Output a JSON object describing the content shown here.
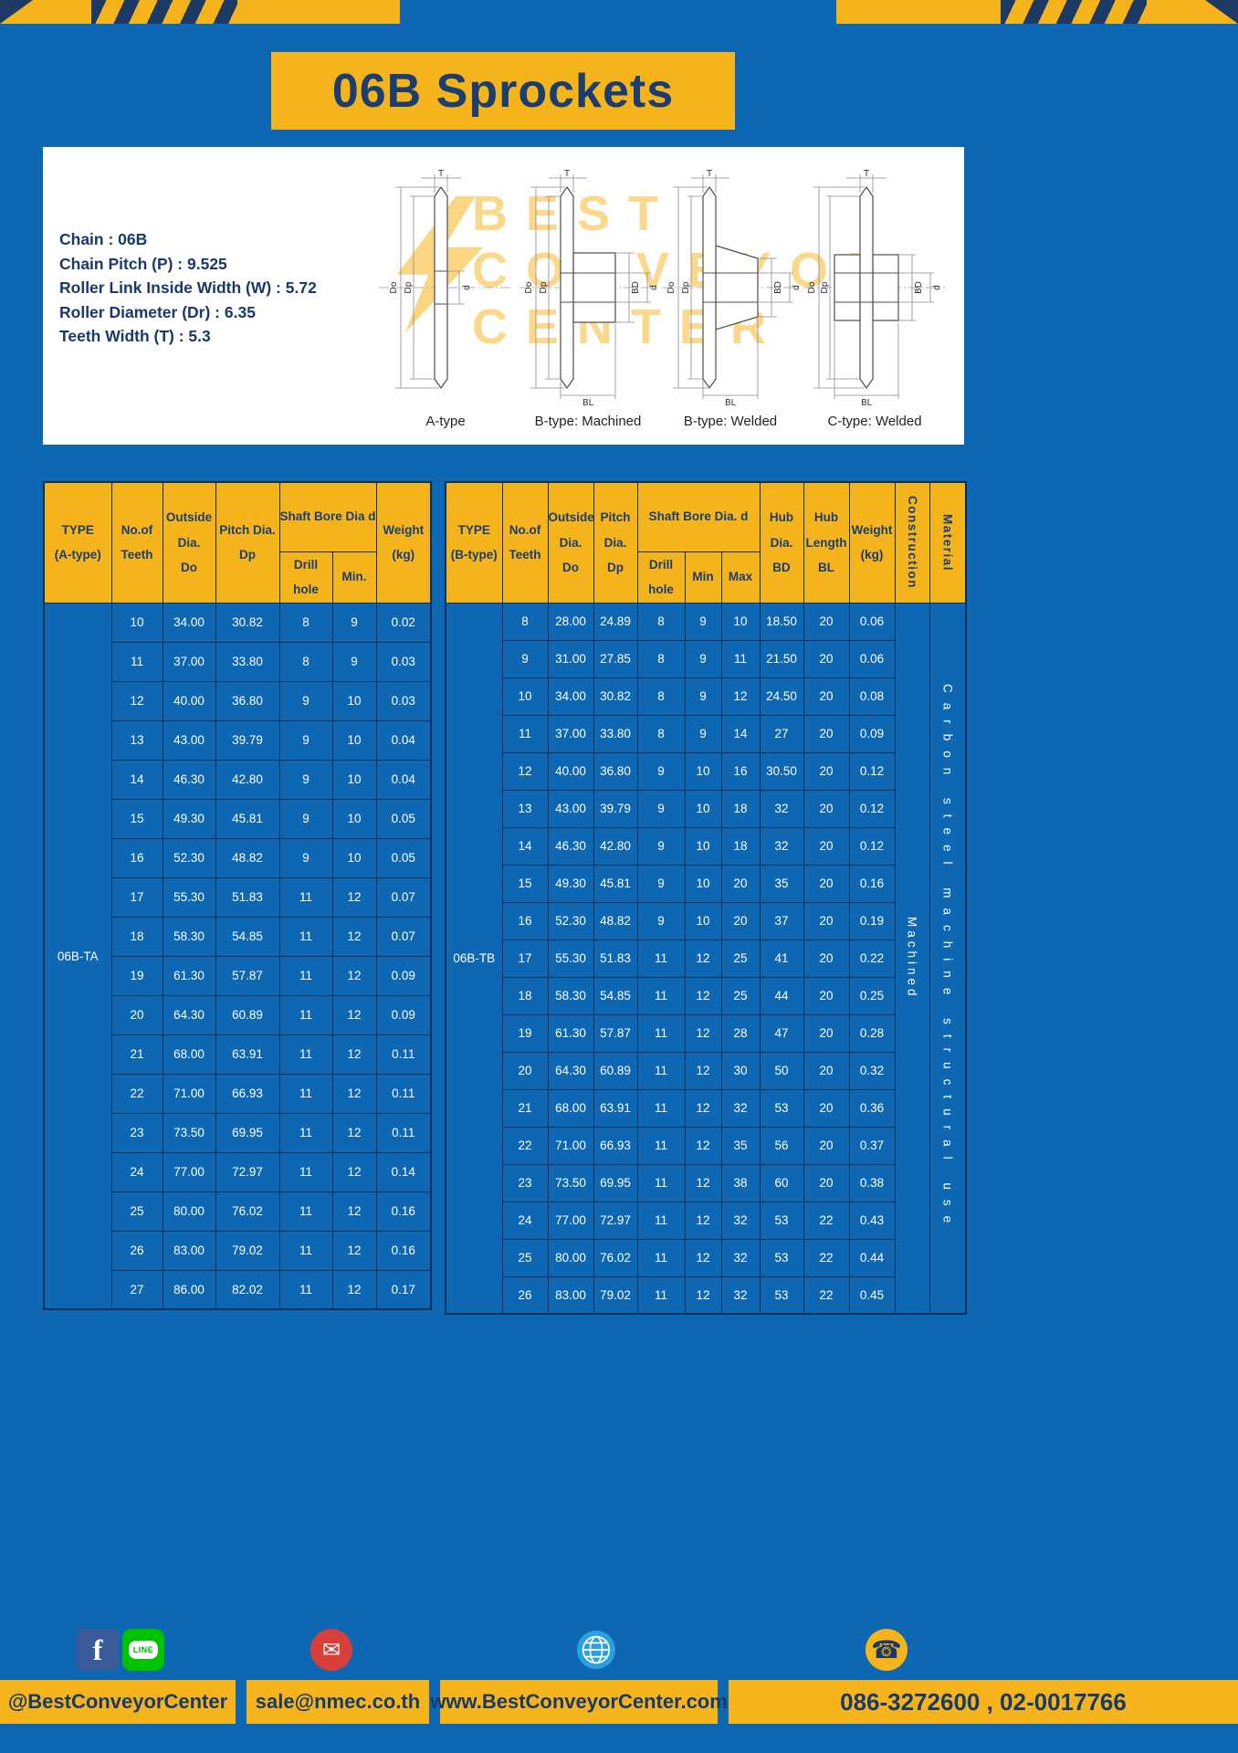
{
  "page_title": "06B Sprockets",
  "specs": [
    "Chain : 06B",
    "Chain Pitch (P) : 9.525",
    "Roller Link Inside Width (W) : 5.72",
    "Roller Diameter (Dr) : 6.35",
    "Teeth Width (T) : 5.3"
  ],
  "watermark": {
    "line1": "BEST",
    "line2": "CONVEYOR",
    "line3": "CENTER"
  },
  "drawings": {
    "captions": [
      "A-type",
      "B-type: Machined",
      "B-type: Welded",
      "C-type: Welded"
    ],
    "dim_labels": {
      "t": "T",
      "do": "Do",
      "dp": "Dp",
      "d": "d",
      "bd": "BD",
      "bl": "BL"
    }
  },
  "colors": {
    "page_blue": "#0e67b2",
    "accent_yellow": "#f5b41c",
    "navy_text": "#1a3e6f"
  },
  "table_a": {
    "type_label": "06B-TA",
    "headers": {
      "type": "TYPE\n(A-type)",
      "teeth": "No.of\nTeeth",
      "outside": "Outside\nDia.\nDo",
      "pitch": "Pitch Dia.\nDp",
      "bore": "Shaft Bore Dia d",
      "drill": "Drill hole",
      "min": "Min.",
      "weight": "Weight\n(kg)"
    },
    "rows": [
      [
        "10",
        "34.00",
        "30.82",
        "8",
        "9",
        "0.02"
      ],
      [
        "11",
        "37.00",
        "33.80",
        "8",
        "9",
        "0.03"
      ],
      [
        "12",
        "40.00",
        "36.80",
        "9",
        "10",
        "0.03"
      ],
      [
        "13",
        "43.00",
        "39.79",
        "9",
        "10",
        "0.04"
      ],
      [
        "14",
        "46.30",
        "42.80",
        "9",
        "10",
        "0.04"
      ],
      [
        "15",
        "49.30",
        "45.81",
        "9",
        "10",
        "0.05"
      ],
      [
        "16",
        "52.30",
        "48.82",
        "9",
        "10",
        "0.05"
      ],
      [
        "17",
        "55.30",
        "51.83",
        "11",
        "12",
        "0.07"
      ],
      [
        "18",
        "58.30",
        "54.85",
        "11",
        "12",
        "0.07"
      ],
      [
        "19",
        "61.30",
        "57.87",
        "11",
        "12",
        "0.09"
      ],
      [
        "20",
        "64.30",
        "60.89",
        "11",
        "12",
        "0.09"
      ],
      [
        "21",
        "68.00",
        "63.91",
        "11",
        "12",
        "0.11"
      ],
      [
        "22",
        "71.00",
        "66.93",
        "11",
        "12",
        "0.11"
      ],
      [
        "23",
        "73.50",
        "69.95",
        "11",
        "12",
        "0.11"
      ],
      [
        "24",
        "77.00",
        "72.97",
        "11",
        "12",
        "0.14"
      ],
      [
        "25",
        "80.00",
        "76.02",
        "11",
        "12",
        "0.16"
      ],
      [
        "26",
        "83.00",
        "79.02",
        "11",
        "12",
        "0.16"
      ],
      [
        "27",
        "86.00",
        "82.02",
        "11",
        "12",
        "0.17"
      ]
    ]
  },
  "table_b": {
    "type_label": "06B-TB",
    "construction_value": "Machined",
    "material_value": "Carbon steel machine structural use",
    "headers": {
      "type": "TYPE\n(B-type)",
      "teeth": "No.of\nTeeth",
      "outside": "Outside\nDia.\nDo",
      "pitch": "Pitch\nDia.\nDp",
      "bore": "Shaft Bore Dia. d",
      "drill": "Drill hole",
      "min": "Min",
      "max": "Max",
      "hub_dia": "Hub\nDia.\nBD",
      "hub_len": "Hub\nLength\nBL",
      "weight": "Weight\n(kg)",
      "construction": "Construction",
      "material": "Material"
    },
    "rows": [
      [
        "8",
        "28.00",
        "24.89",
        "8",
        "9",
        "10",
        "18.50",
        "20",
        "0.06"
      ],
      [
        "9",
        "31.00",
        "27.85",
        "8",
        "9",
        "11",
        "21.50",
        "20",
        "0.06"
      ],
      [
        "10",
        "34.00",
        "30.82",
        "8",
        "9",
        "12",
        "24.50",
        "20",
        "0.08"
      ],
      [
        "11",
        "37.00",
        "33.80",
        "8",
        "9",
        "14",
        "27",
        "20",
        "0.09"
      ],
      [
        "12",
        "40.00",
        "36.80",
        "9",
        "10",
        "16",
        "30.50",
        "20",
        "0.12"
      ],
      [
        "13",
        "43.00",
        "39.79",
        "9",
        "10",
        "18",
        "32",
        "20",
        "0.12"
      ],
      [
        "14",
        "46.30",
        "42.80",
        "9",
        "10",
        "18",
        "32",
        "20",
        "0.12"
      ],
      [
        "15",
        "49.30",
        "45.81",
        "9",
        "10",
        "20",
        "35",
        "20",
        "0.16"
      ],
      [
        "16",
        "52.30",
        "48.82",
        "9",
        "10",
        "20",
        "37",
        "20",
        "0.19"
      ],
      [
        "17",
        "55.30",
        "51.83",
        "11",
        "12",
        "25",
        "41",
        "20",
        "0.22"
      ],
      [
        "18",
        "58.30",
        "54.85",
        "11",
        "12",
        "25",
        "44",
        "20",
        "0.25"
      ],
      [
        "19",
        "61.30",
        "57.87",
        "11",
        "12",
        "28",
        "47",
        "20",
        "0.28"
      ],
      [
        "20",
        "64.30",
        "60.89",
        "11",
        "12",
        "30",
        "50",
        "20",
        "0.32"
      ],
      [
        "21",
        "68.00",
        "63.91",
        "11",
        "12",
        "32",
        "53",
        "20",
        "0.36"
      ],
      [
        "22",
        "71.00",
        "66.93",
        "11",
        "12",
        "35",
        "56",
        "20",
        "0.37"
      ],
      [
        "23",
        "73.50",
        "69.95",
        "11",
        "12",
        "38",
        "60",
        "20",
        "0.38"
      ],
      [
        "24",
        "77.00",
        "72.97",
        "11",
        "12",
        "32",
        "53",
        "22",
        "0.43"
      ],
      [
        "25",
        "80.00",
        "76.02",
        "11",
        "12",
        "32",
        "53",
        "22",
        "0.44"
      ],
      [
        "26",
        "83.00",
        "79.02",
        "11",
        "12",
        "32",
        "53",
        "22",
        "0.45"
      ]
    ]
  },
  "footer": {
    "icons": {
      "facebook": "f",
      "line": "LINE",
      "email": "✉",
      "phone": "☎"
    },
    "segments": [
      "@BestConveyorCenter",
      "sale@nmec.co.th",
      "www.BestConveyorCenter.com",
      "086-3272600 , 02-0017766"
    ]
  }
}
